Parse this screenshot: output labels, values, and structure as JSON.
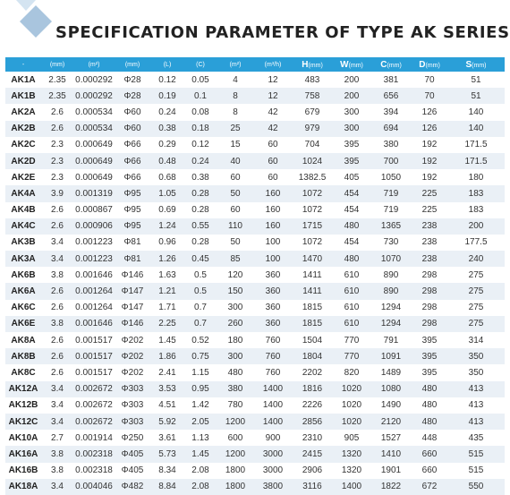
{
  "title": "SPECIFICATION PARAMETER OF TYPE AK SERIES",
  "colors": {
    "header_bg": "#2a9fd8",
    "alt_row": "#eaf0f6",
    "logo_light": "#d4e4f1",
    "logo_dark": "#a9c5de"
  },
  "table": {
    "headers": [
      {
        "main": "",
        "unit": "-"
      },
      {
        "main": "",
        "unit": "(mm)"
      },
      {
        "main": "",
        "unit": "(m²)"
      },
      {
        "main": "",
        "unit": "(mm)"
      },
      {
        "main": "",
        "unit": "(L)"
      },
      {
        "main": "",
        "unit": "(C)"
      },
      {
        "main": "",
        "unit": "(m²)"
      },
      {
        "main": "",
        "unit": "(m³/h)"
      },
      {
        "main": "H",
        "unit": "(mm)"
      },
      {
        "main": "W",
        "unit": "(mm)"
      },
      {
        "main": "C",
        "unit": "(mm)"
      },
      {
        "main": "D",
        "unit": "(mm)"
      },
      {
        "main": "S",
        "unit": "(mm)"
      }
    ],
    "rows": [
      [
        "AK1A",
        "2.35",
        "0.000292",
        "Φ28",
        "0.12",
        "0.05",
        "4",
        "12",
        "483",
        "200",
        "381",
        "70",
        "51"
      ],
      [
        "AK1B",
        "2.35",
        "0.000292",
        "Φ28",
        "0.19",
        "0.1",
        "8",
        "12",
        "758",
        "200",
        "656",
        "70",
        "51"
      ],
      [
        "AK2A",
        "2.6",
        "0.000534",
        "Φ60",
        "0.24",
        "0.08",
        "8",
        "42",
        "679",
        "300",
        "394",
        "126",
        "140"
      ],
      [
        "AK2B",
        "2.6",
        "0.000534",
        "Φ60",
        "0.38",
        "0.18",
        "25",
        "42",
        "979",
        "300",
        "694",
        "126",
        "140"
      ],
      [
        "AK2C",
        "2.3",
        "0.000649",
        "Φ66",
        "0.29",
        "0.12",
        "15",
        "60",
        "704",
        "395",
        "380",
        "192",
        "171.5"
      ],
      [
        "AK2D",
        "2.3",
        "0.000649",
        "Φ66",
        "0.48",
        "0.24",
        "40",
        "60",
        "1024",
        "395",
        "700",
        "192",
        "171.5"
      ],
      [
        "AK2E",
        "2.3",
        "0.000649",
        "Φ66",
        "0.68",
        "0.38",
        "60",
        "60",
        "1382.5",
        "405",
        "1050",
        "192",
        "180"
      ],
      [
        "AK4A",
        "3.9",
        "0.001319",
        "Φ95",
        "1.05",
        "0.28",
        "50",
        "160",
        "1072",
        "454",
        "719",
        "225",
        "183"
      ],
      [
        "AK4B",
        "2.6",
        "0.000867",
        "Φ95",
        "0.69",
        "0.28",
        "60",
        "160",
        "1072",
        "454",
        "719",
        "225",
        "183"
      ],
      [
        "AK4C",
        "2.6",
        "0.000906",
        "Φ95",
        "1.24",
        "0.55",
        "110",
        "160",
        "1715",
        "480",
        "1365",
        "238",
        "200"
      ],
      [
        "AK3B",
        "3.4",
        "0.001223",
        "Φ81",
        "0.96",
        "0.28",
        "50",
        "100",
        "1072",
        "454",
        "730",
        "238",
        "177.5"
      ],
      [
        "AK3A",
        "3.4",
        "0.001223",
        "Φ81",
        "1.26",
        "0.45",
        "85",
        "100",
        "1470",
        "480",
        "1070",
        "238",
        "240"
      ],
      [
        "AK6B",
        "3.8",
        "0.001646",
        "Φ146",
        "1.63",
        "0.5",
        "120",
        "360",
        "1411",
        "610",
        "890",
        "298",
        "275"
      ],
      [
        "AK6A",
        "2.6",
        "0.001264",
        "Φ147",
        "1.21",
        "0.5",
        "150",
        "360",
        "1411",
        "610",
        "890",
        "298",
        "275"
      ],
      [
        "AK6C",
        "2.6",
        "0.001264",
        "Φ147",
        "1.71",
        "0.7",
        "300",
        "360",
        "1815",
        "610",
        "1294",
        "298",
        "275"
      ],
      [
        "AK6E",
        "3.8",
        "0.001646",
        "Φ146",
        "2.25",
        "0.7",
        "260",
        "360",
        "1815",
        "610",
        "1294",
        "298",
        "275"
      ],
      [
        "AK8A",
        "2.6",
        "0.001517",
        "Φ202",
        "1.45",
        "0.52",
        "180",
        "760",
        "1504",
        "770",
        "791",
        "395",
        "314"
      ],
      [
        "AK8B",
        "2.6",
        "0.001517",
        "Φ202",
        "1.86",
        "0.75",
        "300",
        "760",
        "1804",
        "770",
        "1091",
        "395",
        "350"
      ],
      [
        "AK8C",
        "2.6",
        "0.001517",
        "Φ202",
        "2.41",
        "1.15",
        "480",
        "760",
        "2202",
        "820",
        "1489",
        "395",
        "350"
      ],
      [
        "AK12A",
        "3.4",
        "0.002672",
        "Φ303",
        "3.53",
        "0.95",
        "380",
        "1400",
        "1816",
        "1020",
        "1080",
        "480",
        "413"
      ],
      [
        "AK12B",
        "3.4",
        "0.002672",
        "Φ303",
        "4.51",
        "1.42",
        "780",
        "1400",
        "2226",
        "1020",
        "1490",
        "480",
        "413"
      ],
      [
        "AK12C",
        "3.4",
        "0.002672",
        "Φ303",
        "5.92",
        "2.05",
        "1200",
        "1400",
        "2856",
        "1020",
        "2120",
        "480",
        "413"
      ],
      [
        "AK10A",
        "2.7",
        "0.001914",
        "Φ250",
        "3.61",
        "1.13",
        "600",
        "900",
        "2310",
        "905",
        "1527",
        "448",
        "435"
      ],
      [
        "AK16A",
        "3.8",
        "0.002318",
        "Φ405",
        "5.73",
        "1.45",
        "1200",
        "3000",
        "2415",
        "1320",
        "1410",
        "660",
        "515"
      ],
      [
        "AK16B",
        "3.8",
        "0.002318",
        "Φ405",
        "8.34",
        "2.08",
        "1800",
        "3000",
        "2906",
        "1320",
        "1901",
        "660",
        "515"
      ],
      [
        "AK18A",
        "3.4",
        "0.004046",
        "Φ482",
        "8.84",
        "2.08",
        "1800",
        "3800",
        "3116",
        "1400",
        "1822",
        "672",
        "550"
      ]
    ]
  }
}
